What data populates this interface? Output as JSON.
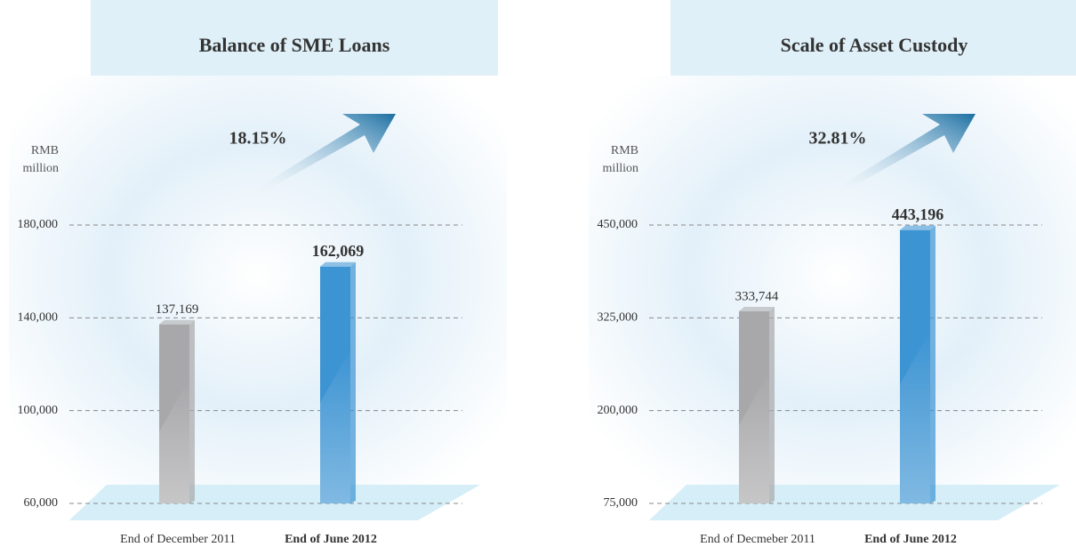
{
  "chart_data": [
    {
      "type": "bar",
      "title": "Balance of SME Loans",
      "ylabel": "RMB million",
      "annotation": "18.15%",
      "categories": [
        "End of December 2011",
        "End of June 2012"
      ],
      "values": [
        137169,
        162069
      ],
      "value_labels": [
        "137,169",
        "162,069"
      ],
      "colors": [
        "#a8a8aa",
        "#3d94d3"
      ],
      "ylim": [
        60000,
        180000
      ],
      "yticks": [
        {
          "value": 60000,
          "label": "60,000"
        },
        {
          "value": 100000,
          "label": "100,000"
        },
        {
          "value": 140000,
          "label": "140,000"
        },
        {
          "value": 180000,
          "label": "180,000"
        }
      ],
      "grid": true
    },
    {
      "type": "bar",
      "title": "Scale of Asset Custody",
      "ylabel": "RMB million",
      "annotation": "32.81%",
      "categories": [
        "End of Decmeber 2011",
        "End of June 2012"
      ],
      "values": [
        333744,
        443196
      ],
      "value_labels": [
        "333,744",
        "443,196"
      ],
      "colors": [
        "#a8a8aa",
        "#3d94d3"
      ],
      "ylim": [
        75000,
        450000
      ],
      "yticks": [
        {
          "value": 75000,
          "label": "75,000"
        },
        {
          "value": 200000,
          "label": "200,000"
        },
        {
          "value": 325000,
          "label": "325,000"
        },
        {
          "value": 450000,
          "label": "450,000"
        }
      ],
      "grid": true
    }
  ]
}
